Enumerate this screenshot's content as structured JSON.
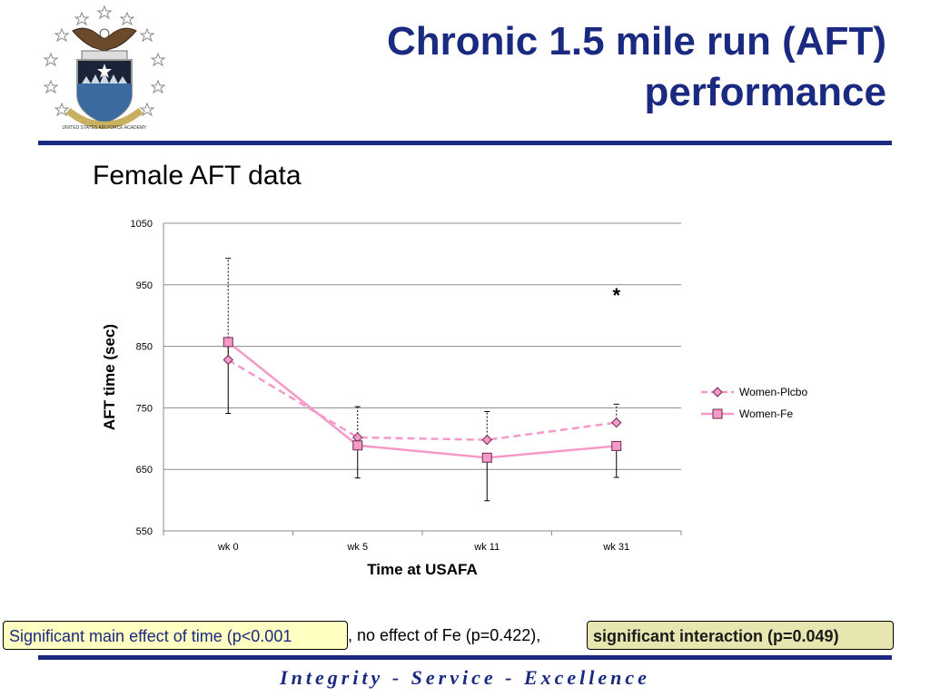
{
  "header": {
    "title_line1": "Chronic 1.5 mile run (AFT)",
    "title_line2": "performance",
    "logo_icon": "usafa-eagle-shield-icon",
    "logo_text": "UNITED STATES AIR FORCE ACADEMY"
  },
  "subtitle": "Female AFT data",
  "chart_data": {
    "type": "line",
    "title": "",
    "xlabel": "Time at USAFA",
    "ylabel": "AFT time (sec)",
    "categories": [
      "wk 0",
      "wk 5",
      "wk 11",
      "wk 31"
    ],
    "ylim": [
      550,
      1050
    ],
    "yticks": [
      550,
      650,
      750,
      850,
      950,
      1050
    ],
    "grid": true,
    "legend_position": "right",
    "annotation": "*",
    "annotation_category": "wk 31",
    "annotation_value": 922,
    "series": [
      {
        "name": "Women-Plcbo",
        "values": [
          828,
          702,
          698,
          726
        ],
        "error_upper": [
          993,
          752,
          744,
          756
        ],
        "color": "#f59ac8",
        "dash": true,
        "marker": "diamond"
      },
      {
        "name": "Women-Fe",
        "values": [
          857,
          689,
          669,
          688
        ],
        "error_lower": [
          741,
          636,
          599,
          637
        ],
        "color": "#f59ac8",
        "dash": false,
        "marker": "square"
      }
    ]
  },
  "bottom": {
    "box1": "Significant main effect of time (p<0.001",
    "middle": "), no effect of Fe (p=0.422),",
    "box2": "significant interaction (p=0.049)"
  },
  "footer": "Integrity - Service - Excellence",
  "colors": {
    "navy": "#1a2a80",
    "pink": "#f59ac8",
    "yellow_box": "#ffffc2",
    "olive_box": "#e8e6b0"
  }
}
